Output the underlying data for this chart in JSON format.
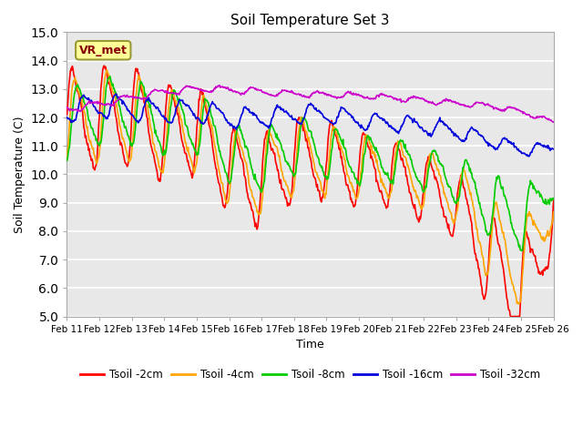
{
  "title": "Soil Temperature Set 3",
  "xlabel": "Time",
  "ylabel": "Soil Temperature (C)",
  "ylim": [
    5.0,
    15.0
  ],
  "yticks": [
    5.0,
    6.0,
    7.0,
    8.0,
    9.0,
    10.0,
    11.0,
    12.0,
    13.0,
    14.0,
    15.0
  ],
  "xtick_labels": [
    "Feb 11",
    "Feb 12",
    "Feb 13",
    "Feb 14",
    "Feb 15",
    "Feb 16",
    "Feb 17",
    "Feb 18",
    "Feb 19",
    "Feb 20",
    "Feb 21",
    "Feb 22",
    "Feb 23",
    "Feb 24",
    "Feb 25",
    "Feb 26"
  ],
  "colors": {
    "Tsoil -2cm": "#FF0000",
    "Tsoil -4cm": "#FFA500",
    "Tsoil -8cm": "#00CC00",
    "Tsoil -16cm": "#0000DD",
    "Tsoil -32cm": "#CC00CC"
  },
  "plot_bg_color": "#E8E8E8",
  "grid_color": "#FFFFFF",
  "annotation": "VR_met",
  "annotation_color": "#880000",
  "annotation_bg": "#FFFF99",
  "annotation_edge": "#999933"
}
